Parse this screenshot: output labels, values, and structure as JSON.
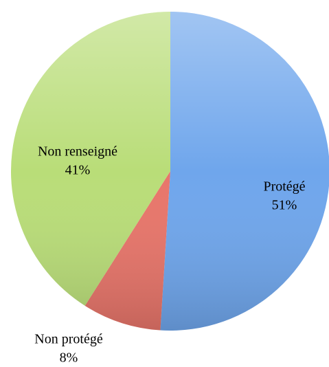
{
  "chart_data": {
    "type": "pie",
    "categories": [
      "Protégé",
      "Non protégé",
      "Non renseigné"
    ],
    "values": [
      51,
      8,
      41
    ],
    "value_labels": [
      "51%",
      "8%",
      "41%"
    ],
    "colors": [
      "#6fa6ec",
      "#e8756a",
      "#b9dd78"
    ]
  }
}
